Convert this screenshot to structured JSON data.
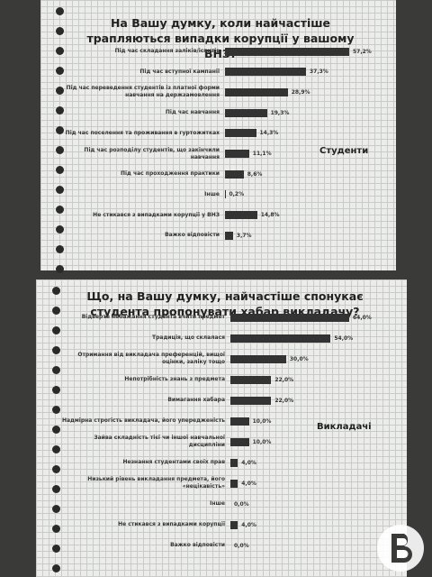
{
  "chart_data": [
    {
      "type": "bar",
      "orientation": "horizontal",
      "title": "На Вашу думку, коли найчастіше трапляються випадки корупції у вашому ВНЗ?",
      "annotation": "Студенти",
      "color": "#333333",
      "categories": [
        "Під час складання заліків/іспитів",
        "Під час вступної кампанії",
        "Під час переведення студентів із платної форми навчання на держзамовлення",
        "Під час навчання",
        "Під час поселення та проживання в гуртожитках",
        "Під час розподілу студентів, що закінчили навчання",
        "Під час проходження практики",
        "Інше",
        "Не стикався з випадками корупції у ВНЗ",
        "Важко відповісти"
      ],
      "values": [
        57.2,
        37.3,
        28.9,
        19.3,
        14.3,
        11.1,
        8.6,
        0.2,
        14.8,
        3.7
      ],
      "value_labels": [
        "57,2%",
        "37,3%",
        "28,9%",
        "19,3%",
        "14,3%",
        "11,1%",
        "8,6%",
        "0,2%",
        "14,8%",
        "3,7%"
      ]
    },
    {
      "type": "bar",
      "orientation": "horizontal",
      "title": "Що, на Вашу думку, найчастіше спонукає студента пропонувати хабар викладачу?",
      "annotation": "Викладачі",
      "color": "#333333",
      "categories": [
        "Відверте небажання студента вчити предмет",
        "Традиція, що склалася",
        "Отримання від викладача преференцій, вищої оцінки, заліку тощо",
        "Непотрібність знань з предмета",
        "Вимагання хабара",
        "Надмірна строгість викладача, його упередженість",
        "Зайва складність тієї чи іншої навчальної дисципліни",
        "Незнання студентами своїх прав",
        "Низький рівень викладання предмета, його «нецікавість»",
        "Інше",
        "Не стикався з випадками корупції",
        "Важко відповісти"
      ],
      "values": [
        64.0,
        54.0,
        30.0,
        22.0,
        22.0,
        10.0,
        10.0,
        4.0,
        4.0,
        0.0,
        4.0,
        0.0
      ],
      "value_labels": [
        "64,0%",
        "54,0%",
        "30,0%",
        "22,0%",
        "22,0%",
        "10,0%",
        "10,0%",
        "4,0%",
        "4,0%",
        "0,0%",
        "4,0%",
        "0,0%"
      ]
    }
  ]
}
